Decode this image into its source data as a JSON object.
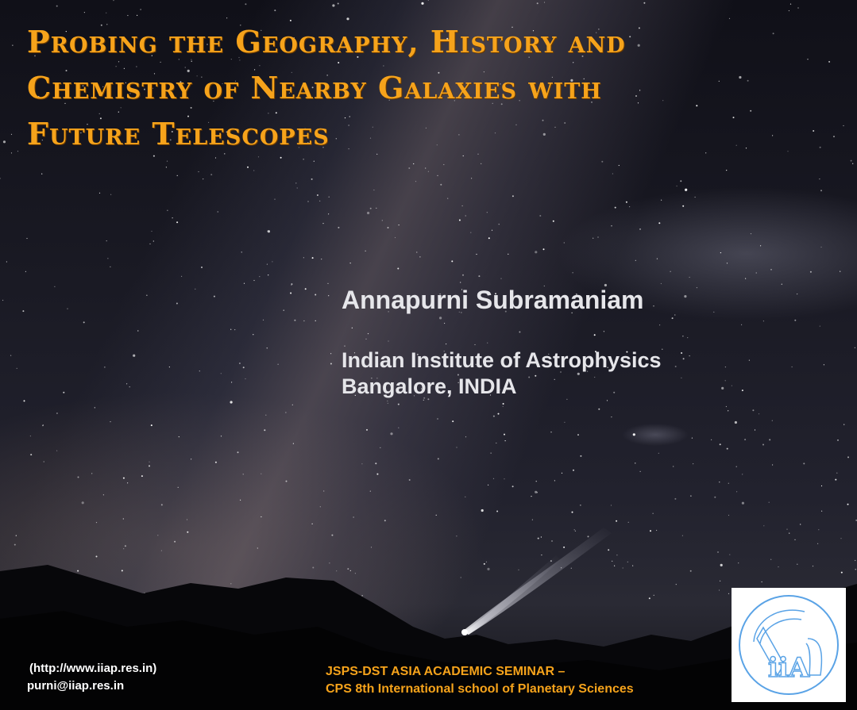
{
  "slide": {
    "title_lines": [
      "Probing the Geography, History and",
      "Chemistry of Nearby Galaxies with",
      "Future Telescopes"
    ],
    "author": "Annapurni Subramaniam",
    "institute_lines": [
      "Indian Institute of Astrophysics",
      "Bangalore, INDIA"
    ],
    "website": "(http://www.iiap.res.in)",
    "email": "purni@iiap.res.in",
    "seminar_lines": [
      "JSPS-DST ASIA ACADEMIC SEMINAR –",
      "CPS 8th International school of Planetary Sciences"
    ],
    "logo": {
      "icon": "iia-logo-icon",
      "text": "iiA",
      "color": "#5aa3e6"
    }
  },
  "colors": {
    "title": "#f6a31b",
    "body_text": "#e6e6ea",
    "footer_accent": "#f6a31b"
  }
}
